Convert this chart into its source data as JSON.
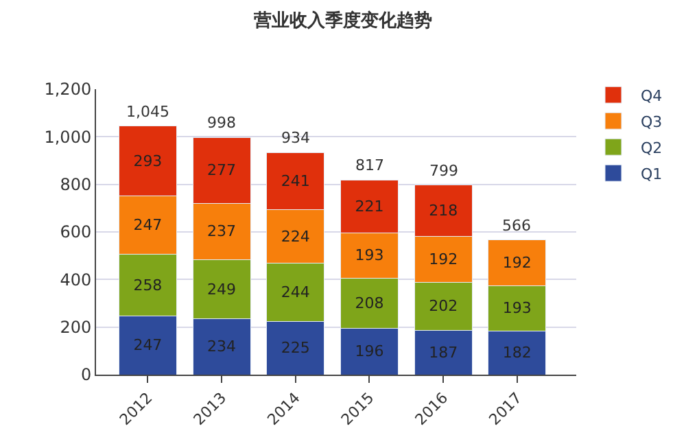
{
  "chart_data": {
    "type": "bar",
    "title": "营业收入季度变化趋势",
    "stacked": true,
    "data_labels": true,
    "legend": "top right",
    "grid": "y",
    "categories": [
      "2012",
      "2013",
      "2014",
      "2015",
      "2016",
      "2017"
    ],
    "series": [
      {
        "name": "Q1",
        "color": "#2e4b9b",
        "values": [
          247,
          234,
          225,
          196,
          187,
          182
        ]
      },
      {
        "name": "Q2",
        "color": "#7fa51a",
        "values": [
          258,
          249,
          244,
          208,
          202,
          193
        ]
      },
      {
        "name": "Q3",
        "color": "#f77f0c",
        "values": [
          247,
          237,
          224,
          193,
          192,
          192
        ]
      },
      {
        "name": "Q4",
        "color": "#e0300c",
        "values": [
          293,
          277,
          241,
          221,
          218,
          null
        ]
      }
    ],
    "totals": [
      "1,045",
      "998",
      "934",
      "817",
      "799",
      "566"
    ],
    "ylim": [
      0,
      1200
    ],
    "yticks": [
      0,
      200,
      400,
      600,
      800,
      {
        "value": 1000,
        "label": "1,000"
      },
      {
        "value": 1200,
        "label": "1,200"
      }
    ]
  }
}
